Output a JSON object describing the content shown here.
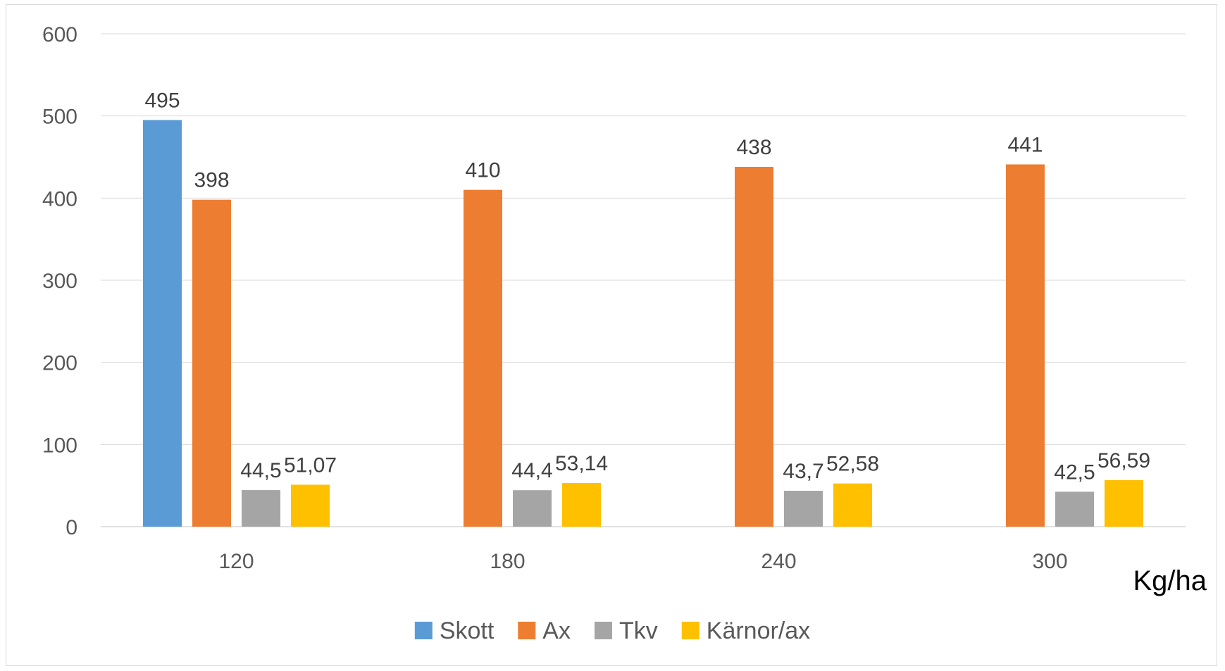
{
  "chart_data": {
    "type": "bar",
    "title": "",
    "xlabel": "Kg/ha",
    "ylabel": "",
    "categories": [
      "120",
      "180",
      "240",
      "300"
    ],
    "ylim": [
      0,
      600
    ],
    "yticks": [
      0,
      100,
      200,
      300,
      400,
      500,
      600
    ],
    "grid": true,
    "legend_position": "bottom",
    "series": [
      {
        "name": "Skott",
        "color": "#5B9BD5",
        "values": [
          495,
          null,
          null,
          null
        ],
        "labels": [
          "495",
          "",
          "",
          ""
        ]
      },
      {
        "name": "Ax",
        "color": "#ED7D31",
        "values": [
          398,
          410,
          438,
          441
        ],
        "labels": [
          "398",
          "410",
          "438",
          "441"
        ]
      },
      {
        "name": "Tkv",
        "color": "#A5A5A5",
        "values": [
          44.5,
          44.4,
          43.7,
          42.5
        ],
        "labels": [
          "44,5",
          "44,4",
          "43,7",
          "42,5"
        ]
      },
      {
        "name": "Kärnor/ax",
        "color": "#FFC000",
        "values": [
          51.07,
          53.14,
          52.58,
          56.59
        ],
        "labels": [
          "51,07",
          "53,14",
          "52,58",
          "56,59"
        ]
      }
    ]
  }
}
